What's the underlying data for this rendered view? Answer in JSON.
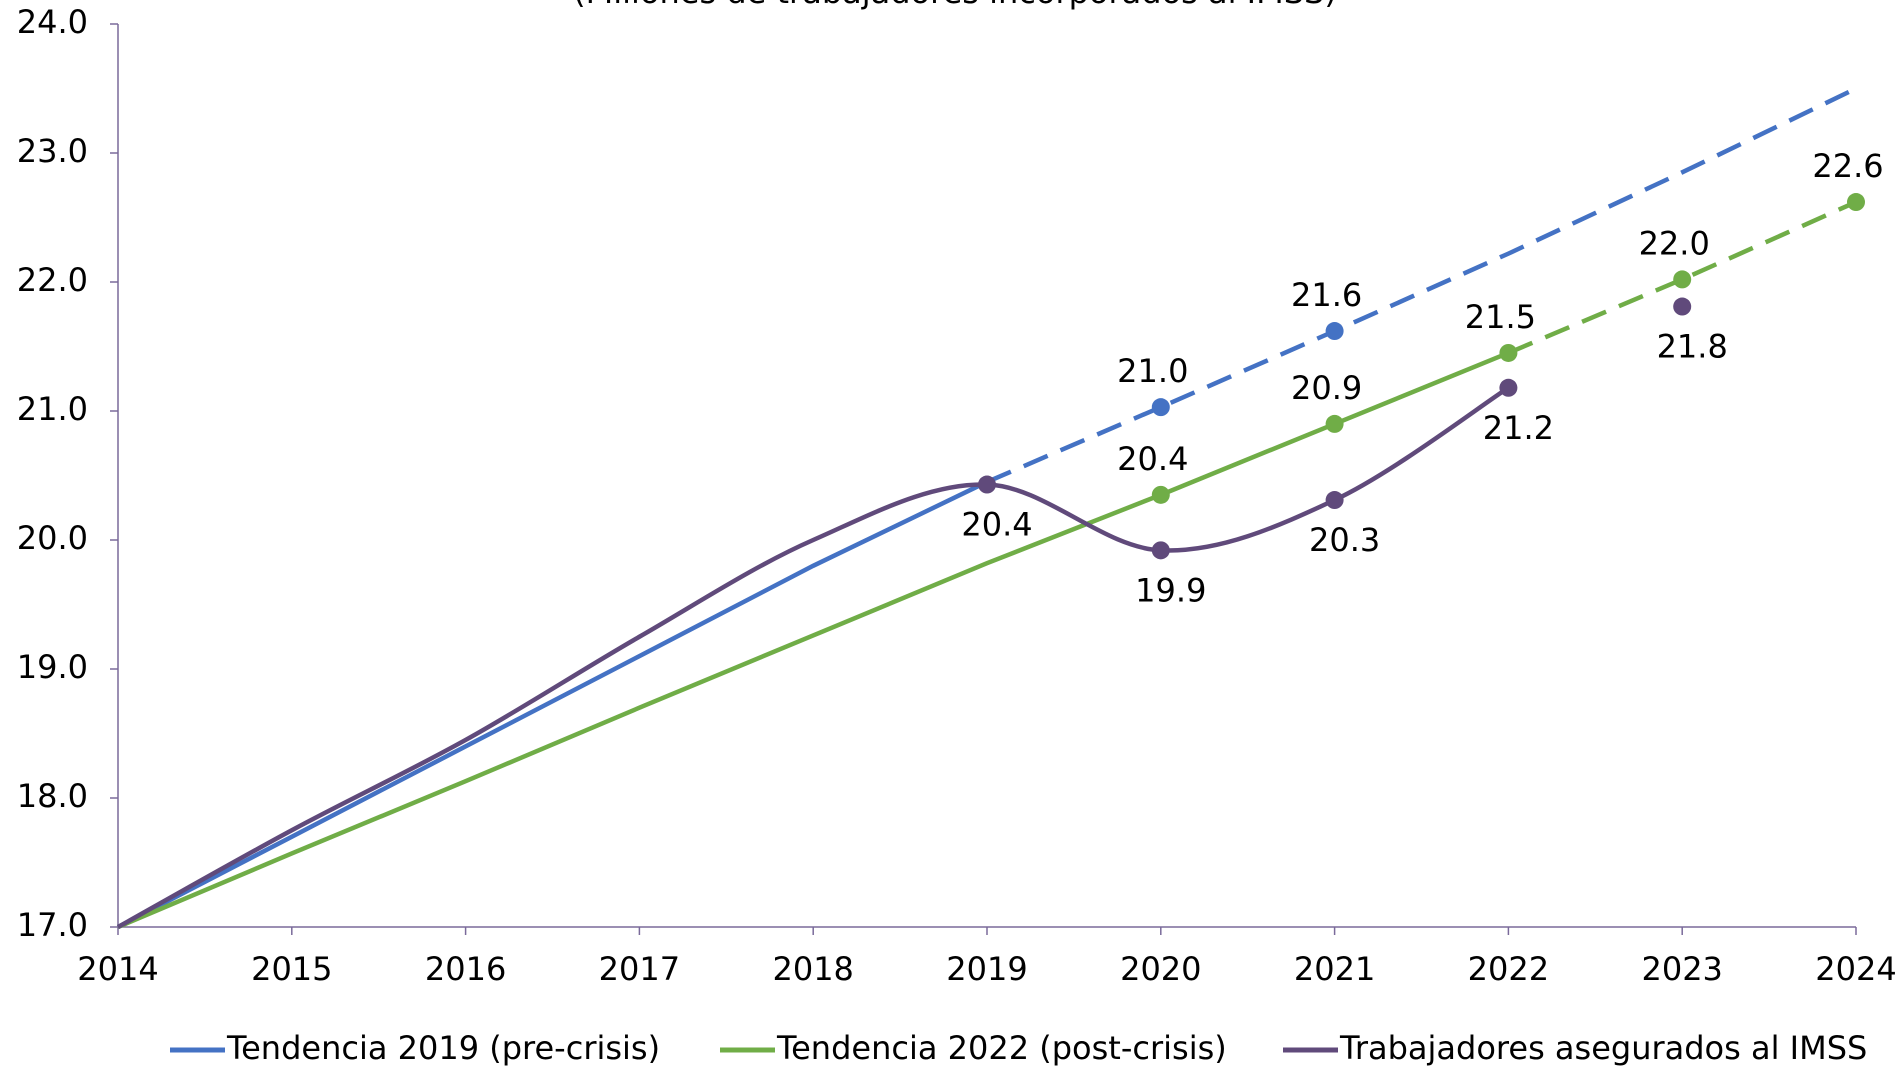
{
  "chart_data": {
    "type": "line",
    "subtitle": "(Millones de trabajadores incorporados al IMSS)",
    "x": [
      2014,
      2015,
      2016,
      2017,
      2018,
      2019,
      2020,
      2021,
      2022,
      2023,
      2024
    ],
    "xlim": [
      2014,
      2024
    ],
    "xticks": [
      2014,
      2015,
      2016,
      2017,
      2018,
      2019,
      2020,
      2021,
      2022,
      2023,
      2024
    ],
    "ylim": [
      17,
      24
    ],
    "yticks": [
      {
        "value": 17,
        "label": "17.0"
      },
      {
        "value": 18,
        "label": "18.0"
      },
      {
        "value": 19,
        "label": "19.0"
      },
      {
        "value": 20,
        "label": "20.0"
      },
      {
        "value": 21,
        "label": "21.0"
      },
      {
        "value": 22,
        "label": "22.0"
      },
      {
        "value": 23,
        "label": "23.0"
      },
      {
        "value": 24,
        "label": "24.0"
      }
    ],
    "grid": false,
    "legend": "bottom",
    "series": [
      {
        "name": "Tendencia 2019 (pre-crisis)",
        "color": "#4472c4",
        "dashed_from": 2019,
        "label_position": "above",
        "values": [
          17.0,
          17.7,
          18.4,
          19.1,
          19.8,
          20.45,
          21.03,
          21.62,
          22.22,
          22.85,
          23.5
        ],
        "value_labels": [
          null,
          null,
          null,
          null,
          null,
          null,
          "21.0",
          "21.6",
          null,
          null,
          null
        ]
      },
      {
        "name": "Tendencia 2022 (post-crisis)",
        "color": "#70ad47",
        "dashed_from": 2022,
        "label_position": "above",
        "values": [
          17.0,
          17.57,
          18.13,
          18.7,
          19.26,
          19.82,
          20.35,
          20.9,
          21.45,
          22.02,
          22.62
        ],
        "value_labels": [
          null,
          null,
          null,
          null,
          null,
          null,
          "20.4",
          "20.9",
          "21.5",
          "22.0",
          "22.6"
        ]
      },
      {
        "name": "Trabajadores asegurados al IMSS",
        "color": "#604a7b",
        "smooth": true,
        "line_to": 2022,
        "label_position": "below",
        "values": [
          17.0,
          17.75,
          18.45,
          19.25,
          20.0,
          20.43,
          19.92,
          20.31,
          21.18,
          21.81,
          null
        ],
        "value_labels": [
          null,
          null,
          null,
          null,
          null,
          "20.4",
          "19.9",
          "20.3",
          "21.2",
          "21.8",
          null
        ]
      }
    ]
  }
}
